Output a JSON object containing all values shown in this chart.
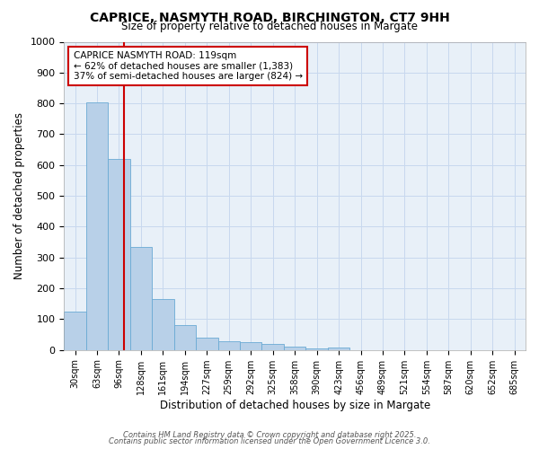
{
  "title": "CAPRICE, NASMYTH ROAD, BIRCHINGTON, CT7 9HH",
  "subtitle": "Size of property relative to detached houses in Margate",
  "xlabel": "Distribution of detached houses by size in Margate",
  "ylabel": "Number of detached properties",
  "bins": [
    "30sqm",
    "63sqm",
    "96sqm",
    "128sqm",
    "161sqm",
    "194sqm",
    "227sqm",
    "259sqm",
    "292sqm",
    "325sqm",
    "358sqm",
    "390sqm",
    "423sqm",
    "456sqm",
    "489sqm",
    "521sqm",
    "554sqm",
    "587sqm",
    "620sqm",
    "652sqm",
    "685sqm"
  ],
  "values": [
    125,
    803,
    620,
    335,
    165,
    82,
    40,
    28,
    26,
    20,
    12,
    5,
    7,
    0,
    0,
    0,
    0,
    0,
    0,
    0,
    0
  ],
  "bar_color": "#b8d0e8",
  "bar_edge_color": "#6aaad4",
  "grid_color": "#c8d8ee",
  "background_color": "#ffffff",
  "plot_bg_color": "#e8f0f8",
  "annotation_text": "CAPRICE NASMYTH ROAD: 119sqm\n← 62% of detached houses are smaller (1,383)\n37% of semi-detached houses are larger (824) →",
  "annotation_box_color": "#ffffff",
  "annotation_border_color": "#cc0000",
  "red_line_color": "#cc0000",
  "ylim": [
    0,
    1000
  ],
  "yticks": [
    0,
    100,
    200,
    300,
    400,
    500,
    600,
    700,
    800,
    900,
    1000
  ],
  "footer1": "Contains HM Land Registry data © Crown copyright and database right 2025.",
  "footer2": "Contains public sector information licensed under the Open Government Licence 3.0."
}
